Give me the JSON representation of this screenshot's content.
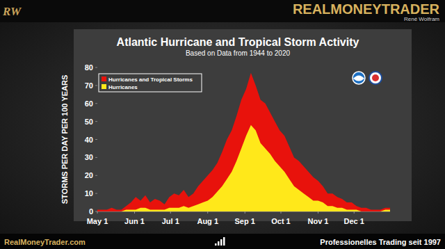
{
  "page": {
    "logo": "RW",
    "brand": "REALMONEYTRADER",
    "author": "René Wolfram",
    "website": "RealMoneyTrader.com",
    "slogan": "Professionelles Trading seit 1997"
  },
  "chart_data": {
    "type": "area",
    "title": "Atlantic Hurricane and Tropical Storm Activity",
    "subtitle": "Based on Data from 1944 to 2020",
    "y_label": "STORMS PER DAY PER 100 YEARS",
    "x": [
      0,
      4,
      8,
      12,
      16,
      20,
      24,
      28,
      32,
      36,
      40,
      44,
      48,
      52,
      56,
      60,
      64,
      68,
      72,
      76,
      80,
      84,
      88,
      92,
      96,
      100,
      104,
      108,
      112,
      116,
      120,
      124,
      128,
      132,
      136,
      140,
      144,
      148,
      152,
      156,
      160,
      164,
      168,
      172,
      176,
      180,
      184,
      188,
      192,
      196,
      200,
      204,
      208,
      212,
      216,
      220,
      224,
      228,
      232,
      236,
      240,
      244
    ],
    "series": [
      {
        "name": "Hurricanes and Tropical Storms",
        "color": "#e8120c",
        "values": [
          1,
          1,
          1,
          2,
          1,
          1,
          3,
          5,
          8,
          6,
          9,
          5,
          7,
          6,
          4,
          8,
          10,
          9,
          12,
          8,
          10,
          14,
          17,
          20,
          23,
          27,
          33,
          40,
          45,
          53,
          62,
          68,
          77,
          70,
          62,
          60,
          55,
          50,
          45,
          42,
          36,
          30,
          28,
          25,
          22,
          19,
          17,
          14,
          10,
          10,
          8,
          7,
          5,
          5,
          3,
          2,
          2,
          1,
          1,
          1,
          2,
          2
        ]
      },
      {
        "name": "Hurricanes",
        "color": "#ffe81a",
        "values": [
          0,
          0,
          0,
          0,
          0,
          0,
          1,
          1,
          1,
          2,
          2,
          1,
          1,
          1,
          1,
          2,
          2,
          2,
          3,
          2,
          3,
          4,
          5,
          6,
          8,
          11,
          14,
          18,
          22,
          28,
          35,
          42,
          48,
          45,
          38,
          35,
          32,
          28,
          25,
          22,
          18,
          14,
          12,
          10,
          8,
          6,
          6,
          5,
          3,
          3,
          2,
          2,
          1,
          1,
          1,
          0,
          0,
          0,
          0,
          0,
          1,
          1
        ]
      }
    ],
    "xlim": [
      0,
      244
    ],
    "xticks": [
      {
        "value": 0,
        "label": "May 1"
      },
      {
        "value": 31,
        "label": "Jun 1"
      },
      {
        "value": 61,
        "label": "Jul 1"
      },
      {
        "value": 92,
        "label": "Aug 1"
      },
      {
        "value": 123,
        "label": "Sep 1"
      },
      {
        "value": 153,
        "label": "Oct 1"
      },
      {
        "value": 184,
        "label": "Nov 1"
      },
      {
        "value": 214,
        "label": "Dec 1"
      }
    ],
    "ylim": [
      0,
      80
    ],
    "yticks": [
      0,
      10,
      20,
      30,
      40,
      50,
      60,
      70,
      80
    ],
    "grid": false,
    "legend": "top-left"
  }
}
